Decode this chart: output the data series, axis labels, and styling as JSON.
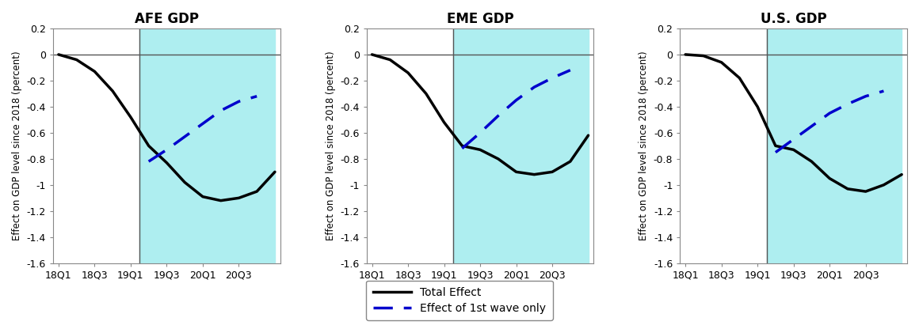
{
  "titles": [
    "AFE GDP",
    "EME GDP",
    "U.S. GDP"
  ],
  "ylabel": "Effect on GDP level since 2018 (percent)",
  "ylim": [
    -1.6,
    0.2
  ],
  "yticks": [
    0.2,
    0.0,
    -0.2,
    -0.4,
    -0.6,
    -0.8,
    -1.0,
    -1.2,
    -1.4,
    -1.6
  ],
  "ytick_labels": [
    "0.2",
    "0",
    "-0.2",
    "-0.4",
    "-0.6",
    "-0.8",
    "-1",
    "-1.2",
    "-1.4",
    "-1.6"
  ],
  "xtick_labels": [
    "18Q1",
    "18Q3",
    "19Q1",
    "19Q3",
    "20Q1",
    "20Q3"
  ],
  "bg_color": "#aeeef0",
  "total_effect_color": "#000000",
  "first_wave_color": "#0000cc",
  "panels": {
    "AFE": {
      "total_effect": [
        0.0,
        -0.04,
        -0.13,
        -0.28,
        -0.48,
        -0.7,
        -0.83,
        -0.98,
        -1.09,
        -1.12,
        -1.1,
        -1.05,
        -0.9
      ],
      "first_wave_x": [
        5,
        6,
        7,
        8,
        9,
        10,
        11
      ],
      "first_wave_y": [
        -0.82,
        -0.73,
        -0.63,
        -0.53,
        -0.43,
        -0.36,
        -0.32
      ]
    },
    "EME": {
      "total_effect": [
        0.0,
        -0.04,
        -0.14,
        -0.3,
        -0.52,
        -0.7,
        -0.73,
        -0.8,
        -0.9,
        -0.92,
        -0.9,
        -0.82,
        -0.62
      ],
      "first_wave_x": [
        5,
        6,
        7,
        8,
        9,
        10,
        11
      ],
      "first_wave_y": [
        -0.72,
        -0.6,
        -0.47,
        -0.35,
        -0.25,
        -0.18,
        -0.12
      ]
    },
    "US": {
      "total_effect": [
        0.0,
        -0.01,
        -0.06,
        -0.18,
        -0.4,
        -0.7,
        -0.73,
        -0.82,
        -0.95,
        -1.03,
        -1.05,
        -1.0,
        -0.92
      ],
      "first_wave_x": [
        5,
        6,
        7,
        8,
        9,
        10,
        11
      ],
      "first_wave_y": [
        -0.75,
        -0.65,
        -0.55,
        -0.45,
        -0.38,
        -0.32,
        -0.28
      ]
    }
  },
  "legend_labels": [
    "Total Effect",
    "Effect of 1st wave only"
  ],
  "background_color": "#ffffff"
}
